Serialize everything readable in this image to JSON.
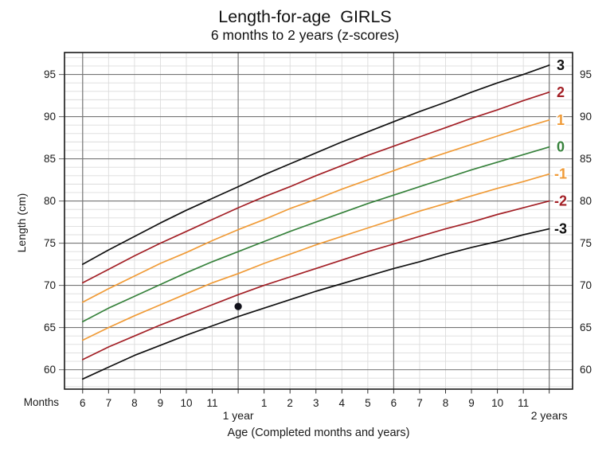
{
  "chart_data": {
    "type": "line",
    "title": "Length-for-age  GIRLS",
    "subtitle": "6 months to 2 years (z-scores)",
    "xlabel": "Age (Completed months and years)",
    "ylabel": "Length (cm)",
    "x_unit_label": "Months",
    "x_domain": [
      5.3,
      24.9
    ],
    "x_months": [
      6,
      7,
      8,
      9,
      10,
      11,
      12,
      13,
      14,
      15,
      16,
      17,
      18,
      19,
      20,
      21,
      22,
      23,
      24
    ],
    "y_axis": {
      "min": 57.7,
      "max": 97.6,
      "major_ticks": [
        60,
        65,
        70,
        75,
        80,
        85,
        90,
        95
      ],
      "minor_step": 1,
      "labels_both_sides": true
    },
    "x_axis": {
      "major_months": [
        6,
        12,
        18,
        24
      ],
      "ticks": [
        {
          "month": 6,
          "label": "6"
        },
        {
          "month": 7,
          "label": "7"
        },
        {
          "month": 8,
          "label": "8"
        },
        {
          "month": 9,
          "label": "9"
        },
        {
          "month": 10,
          "label": "10"
        },
        {
          "month": 11,
          "label": "11"
        },
        {
          "month": 13,
          "label": "1"
        },
        {
          "month": 14,
          "label": "2"
        },
        {
          "month": 15,
          "label": "3"
        },
        {
          "month": 16,
          "label": "4"
        },
        {
          "month": 17,
          "label": "5"
        },
        {
          "month": 18,
          "label": "6"
        },
        {
          "month": 19,
          "label": "7"
        },
        {
          "month": 20,
          "label": "8"
        },
        {
          "month": 21,
          "label": "9"
        },
        {
          "month": 22,
          "label": "10"
        },
        {
          "month": 23,
          "label": "11"
        }
      ],
      "year_labels": [
        {
          "month": 12,
          "label": "1 year"
        },
        {
          "month": 24,
          "label": "2 years"
        }
      ]
    },
    "series": [
      {
        "name": "3",
        "zscore": 3,
        "color": "#111111",
        "values": [
          72.5,
          74.2,
          75.8,
          77.4,
          78.9,
          80.3,
          81.7,
          83.1,
          84.4,
          85.7,
          87.0,
          88.2,
          89.4,
          90.6,
          91.7,
          92.9,
          94.0,
          95.0,
          96.1
        ]
      },
      {
        "name": "2",
        "zscore": 2,
        "color": "#a32026",
        "values": [
          70.3,
          71.9,
          73.5,
          75.0,
          76.4,
          77.8,
          79.2,
          80.5,
          81.7,
          83.0,
          84.2,
          85.4,
          86.5,
          87.6,
          88.7,
          89.8,
          90.8,
          91.9,
          92.9
        ]
      },
      {
        "name": "1",
        "zscore": 1,
        "color": "#f09b37",
        "values": [
          68.0,
          69.6,
          71.1,
          72.6,
          73.9,
          75.3,
          76.6,
          77.8,
          79.1,
          80.2,
          81.4,
          82.5,
          83.6,
          84.7,
          85.7,
          86.7,
          87.7,
          88.7,
          89.6
        ]
      },
      {
        "name": "0",
        "zscore": 0,
        "color": "#37823c",
        "values": [
          65.7,
          67.3,
          68.7,
          70.1,
          71.5,
          72.8,
          74.0,
          75.2,
          76.4,
          77.5,
          78.6,
          79.7,
          80.7,
          81.7,
          82.7,
          83.7,
          84.6,
          85.5,
          86.4
        ]
      },
      {
        "name": "-1",
        "zscore": -1,
        "color": "#f09b37",
        "values": [
          63.5,
          65.0,
          66.4,
          67.7,
          69.0,
          70.3,
          71.4,
          72.6,
          73.7,
          74.8,
          75.8,
          76.8,
          77.8,
          78.8,
          79.7,
          80.6,
          81.5,
          82.3,
          83.2
        ]
      },
      {
        "name": "-2",
        "zscore": -2,
        "color": "#a32026",
        "values": [
          61.2,
          62.7,
          64.0,
          65.3,
          66.5,
          67.7,
          68.9,
          70.0,
          71.0,
          72.0,
          73.0,
          74.0,
          74.9,
          75.8,
          76.7,
          77.5,
          78.4,
          79.2,
          80.0
        ]
      },
      {
        "name": "-3",
        "zscore": -3,
        "color": "#111111",
        "values": [
          58.9,
          60.3,
          61.7,
          62.9,
          64.1,
          65.2,
          66.3,
          67.3,
          68.3,
          69.3,
          70.2,
          71.1,
          72.0,
          72.8,
          73.7,
          74.5,
          75.2,
          76.0,
          76.7
        ]
      }
    ],
    "plotted_point": {
      "month": 12,
      "length_cm": 67.5,
      "color": "#11111a"
    },
    "legend_position": "right-edge-curve-labels",
    "grid": {
      "on": true,
      "minor_color": "#dcdcdc",
      "major_color": "#757575",
      "frame_color": "#1a1a1a",
      "text_color": "#1a1a1a"
    }
  }
}
